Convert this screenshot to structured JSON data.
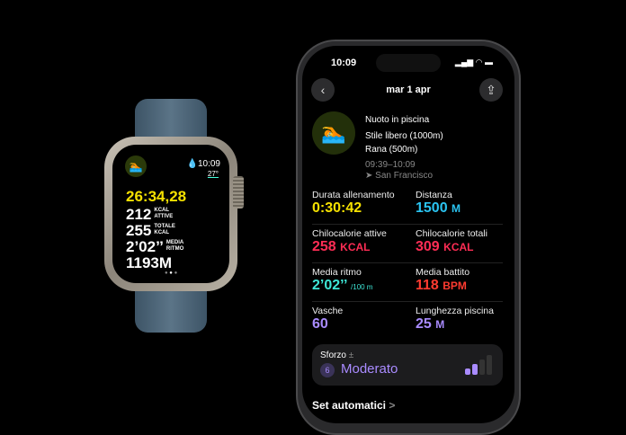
{
  "watch": {
    "time": "10:09",
    "temperature": "27°",
    "timer": "26:34,28",
    "rows": [
      {
        "value": "212",
        "label1": "KCAL",
        "label2": "ATTIVE"
      },
      {
        "value": "255",
        "label1": "TOTALE",
        "label2": "KCAL"
      },
      {
        "value": "2’02’’",
        "label1": "MEDIA",
        "label2": "RITMO"
      },
      {
        "value": "1193M"
      }
    ],
    "timer_color": "#f5e100"
  },
  "phone": {
    "status_time": "10:09",
    "date": "mar 1 apr",
    "workout": {
      "title": "Nuoto in piscina",
      "line1": "Stile libero (1000m)",
      "line2": "Rana (500m)",
      "time_range": "09:39–10:09",
      "location": "San Francisco"
    },
    "metrics": [
      {
        "label": "Durata allenamento",
        "value": "0:30:42",
        "unit": "",
        "color": "#f5e100"
      },
      {
        "label": "Distanza",
        "value": "1500",
        "unit": "M",
        "color": "#2ac3f0"
      },
      {
        "label": "Chilocalorie attive",
        "value": "258",
        "unit": "KCAL",
        "color": "#ff2d55"
      },
      {
        "label": "Chilocalorie totali",
        "value": "309",
        "unit": "KCAL",
        "color": "#ff2d55"
      },
      {
        "label": "Media ritmo",
        "value": "2’02’’",
        "unit": "/100 m",
        "color": "#3ee6d6"
      },
      {
        "label": "Media battito",
        "value": "118",
        "unit": "BPM",
        "color": "#ff3b30"
      },
      {
        "label": "Vasche",
        "value": "60",
        "unit": "",
        "color": "#a98bff"
      },
      {
        "label": "Lunghezza piscina",
        "value": "25",
        "unit": "M",
        "color": "#a98bff"
      }
    ],
    "effort": {
      "label": "Sforzo",
      "plusminus": "±",
      "level": "6",
      "value": "Moderato",
      "color": "#a98bff",
      "fill_bars": 2,
      "total_bars": 4
    },
    "section": "Set automatici",
    "section_chevron": ">"
  }
}
